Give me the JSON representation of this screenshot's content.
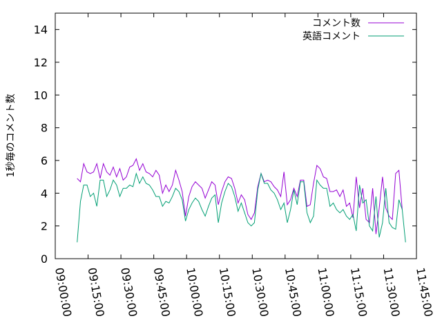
{
  "chart_data": {
    "type": "line",
    "title": "",
    "xlabel": "",
    "ylabel": "1秒毎のコメント数",
    "x_unit": "time-of-day",
    "xlim": [
      "09:00:00",
      "11:45:00"
    ],
    "ylim": [
      0,
      15
    ],
    "y_ticks": [
      0,
      2,
      4,
      6,
      8,
      10,
      12,
      14
    ],
    "y_tick_labels": [
      "0",
      "2",
      "4",
      "6",
      "8",
      "10",
      "12",
      "14"
    ],
    "x_ticks": [
      "09:00:00",
      "09:15:00",
      "09:30:00",
      "09:45:00",
      "10:00:00",
      "10:15:00",
      "10:30:00",
      "10:45:00",
      "11:00:00",
      "11:15:00",
      "11:30:00",
      "11:45:00"
    ],
    "grid": false,
    "legend_position": "top-right",
    "series": [
      {
        "name": "コメント数",
        "color": "#9400d3",
        "points": [
          [
            "09:10:00",
            4.9
          ],
          [
            "09:11:30",
            4.7
          ],
          [
            "09:13:00",
            5.8
          ],
          [
            "09:14:30",
            5.3
          ],
          [
            "09:16:00",
            5.2
          ],
          [
            "09:17:30",
            5.3
          ],
          [
            "09:19:00",
            5.8
          ],
          [
            "09:20:30",
            4.9
          ],
          [
            "09:22:00",
            5.8
          ],
          [
            "09:23:30",
            5.3
          ],
          [
            "09:25:00",
            5.1
          ],
          [
            "09:26:30",
            5.6
          ],
          [
            "09:28:00",
            5.0
          ],
          [
            "09:29:30",
            5.5
          ],
          [
            "09:31:00",
            4.8
          ],
          [
            "09:32:30",
            5.0
          ],
          [
            "09:34:00",
            5.6
          ],
          [
            "09:35:30",
            5.7
          ],
          [
            "09:37:00",
            6.1
          ],
          [
            "09:38:30",
            5.4
          ],
          [
            "09:40:00",
            5.8
          ],
          [
            "09:41:30",
            5.3
          ],
          [
            "09:43:00",
            5.2
          ],
          [
            "09:44:30",
            5.0
          ],
          [
            "09:46:00",
            5.4
          ],
          [
            "09:47:30",
            5.1
          ],
          [
            "09:49:00",
            4.0
          ],
          [
            "09:50:30",
            4.5
          ],
          [
            "09:52:00",
            4.1
          ],
          [
            "09:53:30",
            4.5
          ],
          [
            "09:55:00",
            5.4
          ],
          [
            "09:56:30",
            4.8
          ],
          [
            "09:58:00",
            4.1
          ],
          [
            "09:59:30",
            2.6
          ],
          [
            "10:01:00",
            3.8
          ],
          [
            "10:02:30",
            4.4
          ],
          [
            "10:04:00",
            4.7
          ],
          [
            "10:05:30",
            4.5
          ],
          [
            "10:07:00",
            4.3
          ],
          [
            "10:08:30",
            3.7
          ],
          [
            "10:10:00",
            4.2
          ],
          [
            "10:11:30",
            4.7
          ],
          [
            "10:13:00",
            4.5
          ],
          [
            "10:14:30",
            3.3
          ],
          [
            "10:16:00",
            4.1
          ],
          [
            "10:17:30",
            4.7
          ],
          [
            "10:19:00",
            5.0
          ],
          [
            "10:20:30",
            4.9
          ],
          [
            "10:22:00",
            4.3
          ],
          [
            "10:23:30",
            3.4
          ],
          [
            "10:25:00",
            3.9
          ],
          [
            "10:26:30",
            3.6
          ],
          [
            "10:28:00",
            2.7
          ],
          [
            "10:29:30",
            2.4
          ],
          [
            "10:31:00",
            2.8
          ],
          [
            "10:32:30",
            4.4
          ],
          [
            "10:34:00",
            5.2
          ],
          [
            "10:35:30",
            4.7
          ],
          [
            "10:37:00",
            4.8
          ],
          [
            "10:38:30",
            4.7
          ],
          [
            "10:40:00",
            4.4
          ],
          [
            "10:41:30",
            4.2
          ],
          [
            "10:43:00",
            3.8
          ],
          [
            "10:44:30",
            5.3
          ],
          [
            "10:46:00",
            3.3
          ],
          [
            "10:47:30",
            3.6
          ],
          [
            "10:49:00",
            4.3
          ],
          [
            "10:50:30",
            3.8
          ],
          [
            "10:52:00",
            4.8
          ],
          [
            "10:53:30",
            4.8
          ],
          [
            "10:55:00",
            3.2
          ],
          [
            "10:56:30",
            3.3
          ],
          [
            "10:58:00",
            4.6
          ],
          [
            "10:59:30",
            5.7
          ],
          [
            "11:01:00",
            5.5
          ],
          [
            "11:02:30",
            5.0
          ],
          [
            "11:04:00",
            4.9
          ],
          [
            "11:05:30",
            4.1
          ],
          [
            "11:07:00",
            4.1
          ],
          [
            "11:08:30",
            4.2
          ],
          [
            "11:10:00",
            3.8
          ],
          [
            "11:11:30",
            4.2
          ],
          [
            "11:13:00",
            3.2
          ],
          [
            "11:14:30",
            3.4
          ],
          [
            "11:16:00",
            2.5
          ],
          [
            "11:17:30",
            5.0
          ],
          [
            "11:19:00",
            3.1
          ],
          [
            "11:20:30",
            4.3
          ],
          [
            "11:22:00",
            2.4
          ],
          [
            "11:23:30",
            2.2
          ],
          [
            "11:25:00",
            4.3
          ],
          [
            "11:26:30",
            1.5
          ],
          [
            "11:28:00",
            3.1
          ],
          [
            "11:29:30",
            5.0
          ],
          [
            "11:31:00",
            3.1
          ],
          [
            "11:32:30",
            2.6
          ],
          [
            "11:34:00",
            2.4
          ],
          [
            "11:35:30",
            5.2
          ],
          [
            "11:37:00",
            5.4
          ],
          [
            "11:38:30",
            3.0
          ]
        ]
      },
      {
        "name": "英語コメント",
        "color": "#009e73",
        "points": [
          [
            "09:10:00",
            1.0
          ],
          [
            "09:11:30",
            3.5
          ],
          [
            "09:13:00",
            4.5
          ],
          [
            "09:14:30",
            4.5
          ],
          [
            "09:16:00",
            3.8
          ],
          [
            "09:17:30",
            4.0
          ],
          [
            "09:19:00",
            3.2
          ],
          [
            "09:20:30",
            4.8
          ],
          [
            "09:22:00",
            4.8
          ],
          [
            "09:23:30",
            3.8
          ],
          [
            "09:25:00",
            4.2
          ],
          [
            "09:26:30",
            4.8
          ],
          [
            "09:28:00",
            4.5
          ],
          [
            "09:29:30",
            3.8
          ],
          [
            "09:31:00",
            4.3
          ],
          [
            "09:32:30",
            4.3
          ],
          [
            "09:34:00",
            4.5
          ],
          [
            "09:35:30",
            4.4
          ],
          [
            "09:37:00",
            5.2
          ],
          [
            "09:38:30",
            4.6
          ],
          [
            "09:40:00",
            5.0
          ],
          [
            "09:41:30",
            4.6
          ],
          [
            "09:43:00",
            4.5
          ],
          [
            "09:44:30",
            4.2
          ],
          [
            "09:46:00",
            3.8
          ],
          [
            "09:47:30",
            3.8
          ],
          [
            "09:49:00",
            3.2
          ],
          [
            "09:50:30",
            3.5
          ],
          [
            "09:52:00",
            3.4
          ],
          [
            "09:53:30",
            3.8
          ],
          [
            "09:55:00",
            4.3
          ],
          [
            "09:56:30",
            4.1
          ],
          [
            "09:58:00",
            3.6
          ],
          [
            "09:59:30",
            2.3
          ],
          [
            "10:01:00",
            3.0
          ],
          [
            "10:02:30",
            3.4
          ],
          [
            "10:04:00",
            3.7
          ],
          [
            "10:05:30",
            3.5
          ],
          [
            "10:07:00",
            3.0
          ],
          [
            "10:08:30",
            2.6
          ],
          [
            "10:10:00",
            3.2
          ],
          [
            "10:11:30",
            3.7
          ],
          [
            "10:13:00",
            3.9
          ],
          [
            "10:14:30",
            2.2
          ],
          [
            "10:16:00",
            3.4
          ],
          [
            "10:17:30",
            4.1
          ],
          [
            "10:19:00",
            4.6
          ],
          [
            "10:20:30",
            4.4
          ],
          [
            "10:22:00",
            3.8
          ],
          [
            "10:23:30",
            2.9
          ],
          [
            "10:25:00",
            3.4
          ],
          [
            "10:26:30",
            2.8
          ],
          [
            "10:28:00",
            2.2
          ],
          [
            "10:29:30",
            2.0
          ],
          [
            "10:31:00",
            2.2
          ],
          [
            "10:32:30",
            4.2
          ],
          [
            "10:34:00",
            5.2
          ],
          [
            "10:35:30",
            4.6
          ],
          [
            "10:37:00",
            4.6
          ],
          [
            "10:38:30",
            4.2
          ],
          [
            "10:40:00",
            4.0
          ],
          [
            "10:41:30",
            3.6
          ],
          [
            "10:43:00",
            3.0
          ],
          [
            "10:44:30",
            3.4
          ],
          [
            "10:46:00",
            2.2
          ],
          [
            "10:47:30",
            3.0
          ],
          [
            "10:49:00",
            4.2
          ],
          [
            "10:50:30",
            3.3
          ],
          [
            "10:52:00",
            4.7
          ],
          [
            "10:53:30",
            4.7
          ],
          [
            "10:55:00",
            2.8
          ],
          [
            "10:56:30",
            2.2
          ],
          [
            "10:58:00",
            2.6
          ],
          [
            "10:59:30",
            4.8
          ],
          [
            "11:01:00",
            4.5
          ],
          [
            "11:02:30",
            4.3
          ],
          [
            "11:04:00",
            4.3
          ],
          [
            "11:05:30",
            3.2
          ],
          [
            "11:07:00",
            3.4
          ],
          [
            "11:08:30",
            3.0
          ],
          [
            "11:10:00",
            2.8
          ],
          [
            "11:11:30",
            3.0
          ],
          [
            "11:13:00",
            2.6
          ],
          [
            "11:14:30",
            2.4
          ],
          [
            "11:16:00",
            2.7
          ],
          [
            "11:17:30",
            1.7
          ],
          [
            "11:19:00",
            4.5
          ],
          [
            "11:20:30",
            3.4
          ],
          [
            "11:22:00",
            3.6
          ],
          [
            "11:23:30",
            2.0
          ],
          [
            "11:25:00",
            1.7
          ],
          [
            "11:26:30",
            3.8
          ],
          [
            "11:28:00",
            1.3
          ],
          [
            "11:29:30",
            2.2
          ],
          [
            "11:31:00",
            4.3
          ],
          [
            "11:32:30",
            2.2
          ],
          [
            "11:34:00",
            1.9
          ],
          [
            "11:35:30",
            1.8
          ],
          [
            "11:37:00",
            3.6
          ],
          [
            "11:38:30",
            3.0
          ],
          [
            "11:40:00",
            1.0
          ]
        ]
      }
    ]
  }
}
